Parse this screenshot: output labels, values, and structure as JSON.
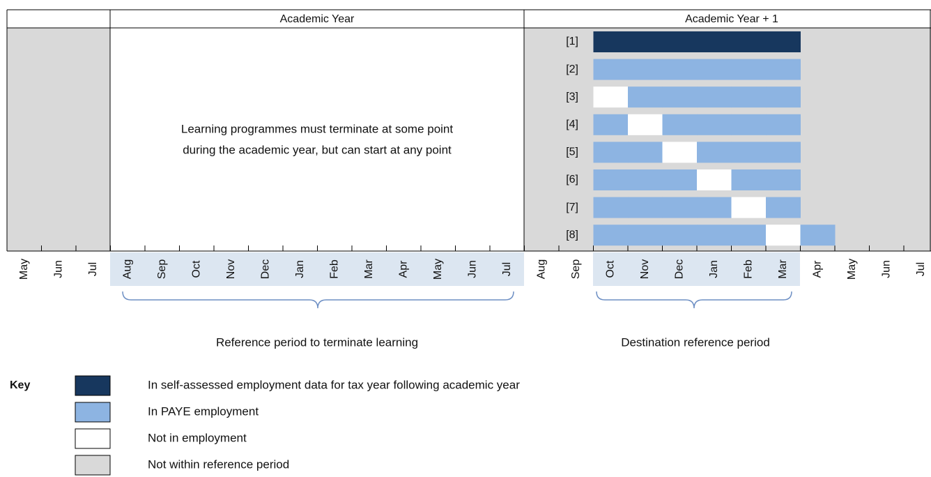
{
  "header": {
    "left": "Academic Year",
    "right": "Academic Year + 1"
  },
  "note": [
    "Learning programmes must terminate at some point",
    "during the academic year, but can start at any point"
  ],
  "rows": [
    "[1]",
    "[2]",
    "[3]",
    "[4]",
    "[5]",
    "[6]",
    "[7]",
    "[8]"
  ],
  "months": [
    "May",
    "Jun",
    "Jul",
    "Aug",
    "Sep",
    "Oct",
    "Nov",
    "Dec",
    "Jan",
    "Feb",
    "Mar",
    "Apr",
    "May",
    "Jun",
    "Jul",
    "Aug",
    "Sep",
    "Oct",
    "Nov",
    "Dec",
    "Jan",
    "Feb",
    "Mar",
    "Apr",
    "May",
    "Jun",
    "Jul"
  ],
  "brackets": [
    "Reference period to terminate learning",
    "Destination reference period"
  ],
  "key": {
    "title": "Key",
    "items": [
      "In self-assessed employment data for tax year following academic year",
      "In PAYE employment",
      "Not in employment",
      "Not within reference period"
    ]
  }
}
